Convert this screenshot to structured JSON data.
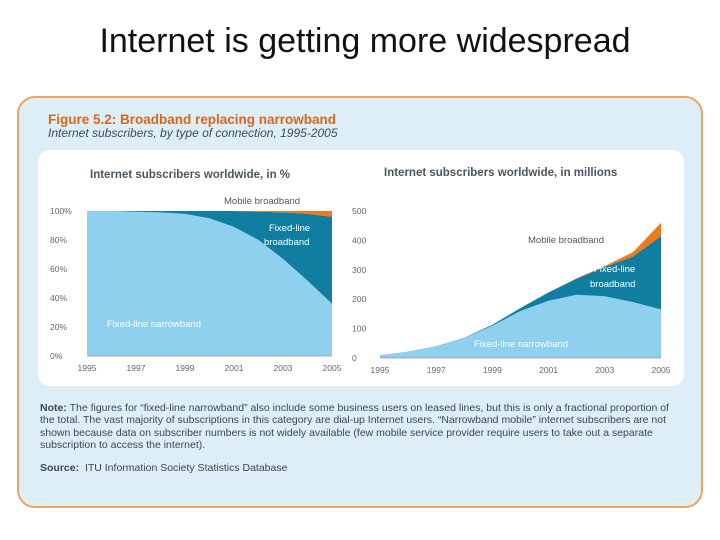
{
  "slide": {
    "title": "Internet is getting more widespread"
  },
  "figure": {
    "title": "Figure 5.2: Broadband replacing narrowband",
    "subtitle": "Internet subscribers, by type of connection, 1995-2005",
    "note_label": "Note:",
    "note_text": "The figures for “fixed-line narrowband” also include some business users on leased lines, but this is only a fractional proportion of the total. The vast majority of subscriptions in this category are dial-up Internet users. “Narrowband mobile” internet subscribers are not shown because data on subscriber numbers is not widely available (few mobile service provider require users to take out a separate subscription to access the internet).",
    "source_label": "Source:",
    "source_text": "ITU Information Society Statistics Database"
  },
  "colors": {
    "narrowband": "#8ed0ee",
    "fixed_broadband": "#0f7ea0",
    "mobile_broadband": "#ee7a1c",
    "accent": "#d9661c"
  },
  "chart_data": [
    {
      "type": "area",
      "stacked": "percent",
      "title": "Internet subscribers worldwide, in %",
      "x": [
        1995,
        1996,
        1997,
        1998,
        1999,
        2000,
        2001,
        2002,
        2003,
        2004,
        2005
      ],
      "xticks": [
        "1995",
        "1997",
        "1999",
        "2001",
        "2003",
        "2005"
      ],
      "yticks": [
        "0%",
        "20%",
        "40%",
        "60%",
        "80%",
        "100%"
      ],
      "ylim": [
        0,
        100
      ],
      "series": [
        {
          "name": "Fixed-line narrowband",
          "values": [
            100,
            100,
            99.5,
            99,
            98,
            95,
            89,
            80,
            67,
            52,
            36
          ]
        },
        {
          "name": "Fixed-line broadband",
          "values": [
            0,
            0,
            0.5,
            1,
            2,
            5,
            11,
            19.5,
            32,
            46,
            60
          ]
        },
        {
          "name": "Mobile broadband",
          "values": [
            0,
            0,
            0,
            0,
            0,
            0,
            0,
            0.5,
            1,
            2,
            4
          ]
        }
      ],
      "labels": {
        "mobile": "Mobile broadband",
        "fixed1": "Fixed-line",
        "fixed2": "broadband",
        "narrow": "Fixed-line narrowband"
      }
    },
    {
      "type": "area",
      "stacked": "absolute",
      "title": "Internet subscribers worldwide, in millions",
      "x": [
        1995,
        1996,
        1997,
        1998,
        1999,
        2000,
        2001,
        2002,
        2003,
        2004,
        2005
      ],
      "xticks": [
        "1995",
        "1997",
        "1999",
        "2001",
        "2003",
        "2005"
      ],
      "yticks": [
        "0",
        "100",
        "200",
        "300",
        "400",
        "500"
      ],
      "ylim": [
        0,
        500
      ],
      "series": [
        {
          "name": "Fixed-line narrowband",
          "values": [
            10,
            22,
            40,
            68,
            110,
            160,
            195,
            215,
            210,
            190,
            165
          ]
        },
        {
          "name": "Fixed-line broadband",
          "values": [
            0,
            0,
            0.5,
            1,
            3,
            10,
            28,
            55,
            100,
            155,
            250
          ]
        },
        {
          "name": "Mobile broadband",
          "values": [
            0,
            0,
            0,
            0,
            0,
            0,
            0,
            1,
            3,
            15,
            45
          ]
        }
      ],
      "labels": {
        "mobile": "Mobile broadband",
        "fixed1": "Fixed-line",
        "fixed2": "broadband",
        "narrow": "Fixed-line narrowband"
      }
    }
  ]
}
